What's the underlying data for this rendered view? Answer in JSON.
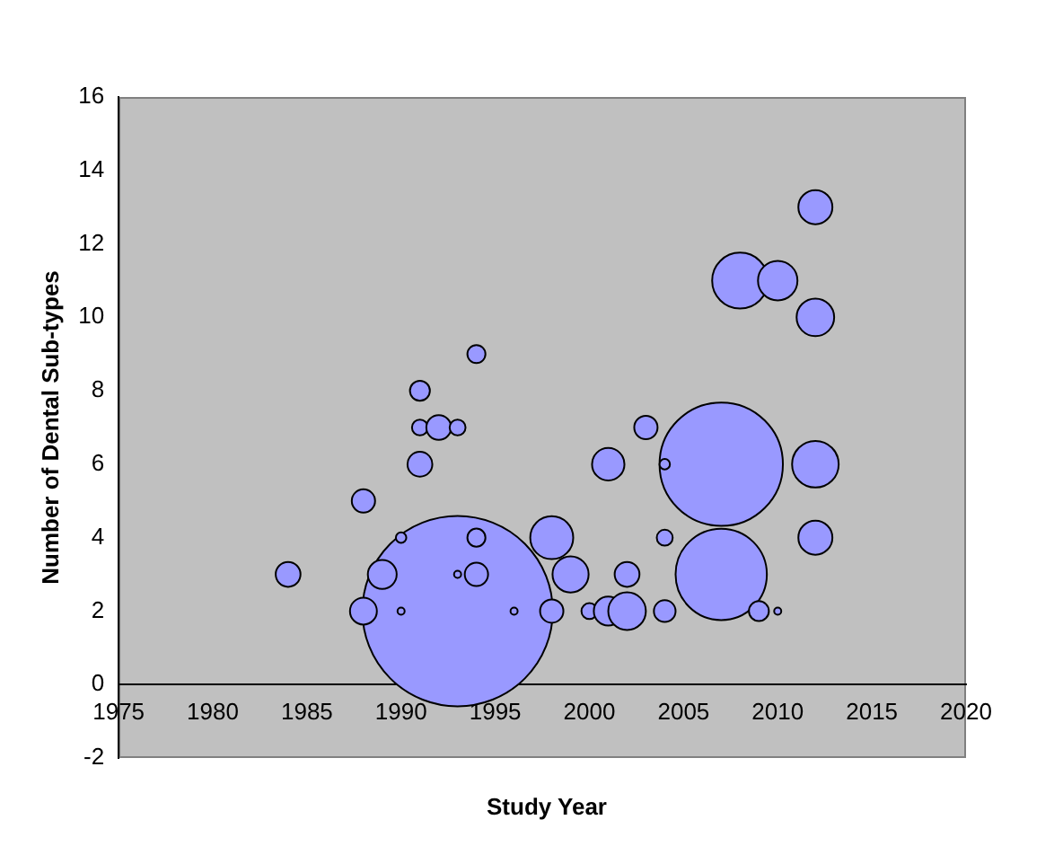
{
  "chart_data": {
    "type": "bubble",
    "xlabel": "Study Year",
    "ylabel": "Number of Dental Sub-types",
    "xlim": [
      1975,
      2020
    ],
    "xticks": [
      1975,
      1980,
      1985,
      1990,
      1995,
      2000,
      2005,
      2010,
      2015,
      2020
    ],
    "ylim": [
      -2,
      16
    ],
    "yticks": [
      -2,
      0,
      2,
      4,
      6,
      8,
      10,
      12,
      14,
      16
    ],
    "grid": false,
    "legend": false,
    "marker": "circle",
    "series": [
      {
        "color": "#9999ff",
        "x": [
          1993,
          2007,
          2007,
          1984,
          1988,
          1988,
          1989,
          1990,
          1990,
          1991,
          1991,
          1991,
          1992,
          1993,
          1993,
          1994,
          1994,
          1994,
          1996,
          1998,
          1998,
          1999,
          2000,
          2001,
          2001,
          2002,
          2002,
          2003,
          2004,
          2004,
          2004,
          2008,
          2009,
          2010,
          2010,
          2012,
          2012,
          2012,
          2012
        ],
        "values": [
          2,
          6,
          3,
          3,
          2,
          5,
          3,
          2,
          4,
          6,
          7,
          8,
          7,
          7,
          3,
          3,
          4,
          9,
          2,
          4,
          2,
          3,
          2,
          2,
          6,
          2,
          3,
          7,
          6,
          4,
          2,
          11,
          2,
          2,
          11,
          13,
          10,
          6,
          4
        ],
        "sizes": [
          1,
          0.42,
          0.23,
          0.017,
          0.02,
          0.015,
          0.023,
          0.0014,
          0.003,
          0.017,
          0.007,
          0.011,
          0.017,
          0.007,
          0.0014,
          0.015,
          0.009,
          0.009,
          0.0014,
          0.051,
          0.015,
          0.036,
          0.007,
          0.023,
          0.029,
          0.039,
          0.017,
          0.015,
          0.003,
          0.007,
          0.013,
          0.086,
          0.011,
          0.0014,
          0.043,
          0.032,
          0.039,
          0.06,
          0.032
        ]
      }
    ]
  }
}
